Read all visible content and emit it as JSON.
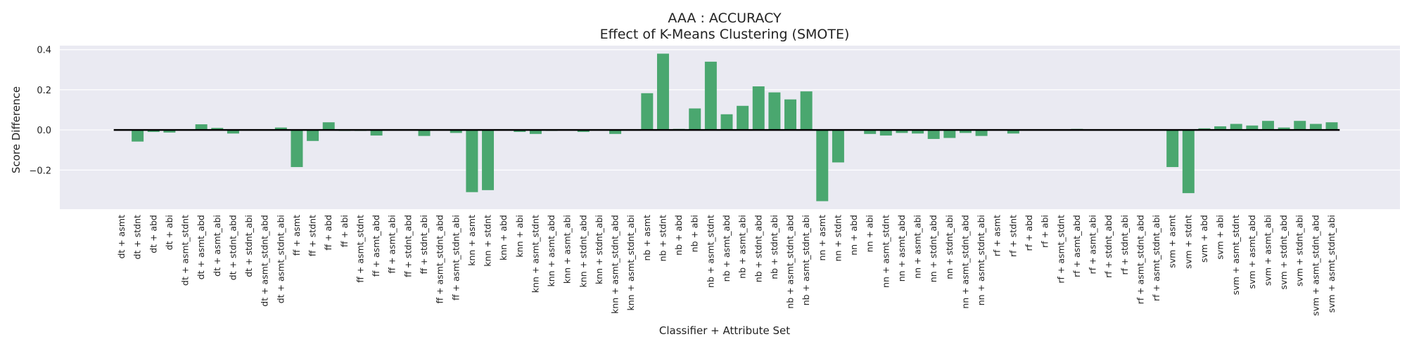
{
  "chart_data": {
    "type": "bar",
    "title": "AAA : ACCURACY",
    "subtitle": "Effect of K-Means Clustering (SMOTE)",
    "xlabel": "Classifier + Attribute Set",
    "ylabel": "Score Difference",
    "ylim": [
      -0.395,
      0.42
    ],
    "yticks": [
      -0.2,
      0.0,
      0.2,
      0.4
    ],
    "ytick_labels": [
      "−0.2",
      "0.0",
      "0.2",
      "0.4"
    ],
    "grid": true,
    "legend": "none",
    "colors": {
      "bar": "#4aa76f",
      "plot_bg": "#eaeaf2",
      "grid": "#ffffff",
      "zero_line": "#000000"
    },
    "categories": [
      "dt + asmt",
      "dt + stdnt",
      "dt + abd",
      "dt + abi",
      "dt + asmt_stdnt",
      "dt + asmt_abd",
      "dt + asmt_abi",
      "dt + stdnt_abd",
      "dt + stdnt_abi",
      "dt + asmt_stdnt_abd",
      "dt + asmt_stdnt_abi",
      "ff + asmt",
      "ff + stdnt",
      "ff + abd",
      "ff + abi",
      "ff + asmt_stdnt",
      "ff + asmt_abd",
      "ff + asmt_abi",
      "ff + stdnt_abd",
      "ff + stdnt_abi",
      "ff + asmt_stdnt_abd",
      "ff + asmt_stdnt_abi",
      "knn + asmt",
      "knn + stdnt",
      "knn + abd",
      "knn + abi",
      "knn + asmt_stdnt",
      "knn + asmt_abd",
      "knn + asmt_abi",
      "knn + stdnt_abd",
      "knn + stdnt_abi",
      "knn + asmt_stdnt_abd",
      "knn + asmt_stdnt_abi",
      "nb + asmt",
      "nb + stdnt",
      "nb + abd",
      "nb + abi",
      "nb + asmt_stdnt",
      "nb + asmt_abd",
      "nb + asmt_abi",
      "nb + stdnt_abd",
      "nb + stdnt_abi",
      "nb + asmt_stdnt_abd",
      "nb + asmt_stdnt_abi",
      "nn + asmt",
      "nn + stdnt",
      "nn + abd",
      "nn + abi",
      "nn + asmt_stdnt",
      "nn + asmt_abd",
      "nn + asmt_abi",
      "nn + stdnt_abd",
      "nn + stdnt_abi",
      "nn + asmt_stdnt_abd",
      "nn + asmt_stdnt_abi",
      "rf + asmt",
      "rf + stdnt",
      "rf + abd",
      "rf + abi",
      "rf + asmt_stdnt",
      "rf + asmt_abd",
      "rf + asmt_abi",
      "rf + stdnt_abd",
      "rf + stdnt_abi",
      "rf + asmt_stdnt_abd",
      "rf + asmt_stdnt_abi",
      "svm + asmt",
      "svm + stdnt",
      "svm + abd",
      "svm + abi",
      "svm + asmt_stdnt",
      "svm + asmt_abd",
      "svm + asmt_abi",
      "svm + stdnt_abd",
      "svm + stdnt_abi",
      "svm + asmt_stdnt_abd",
      "svm + asmt_stdnt_abi"
    ],
    "values": [
      0.0,
      -0.058,
      -0.01,
      -0.013,
      0.003,
      0.028,
      0.01,
      -0.018,
      0.003,
      0.002,
      0.012,
      -0.185,
      -0.055,
      0.038,
      -0.005,
      -0.005,
      -0.028,
      0.0,
      0.0,
      -0.03,
      0.0,
      -0.015,
      -0.31,
      -0.3,
      -0.003,
      -0.01,
      -0.02,
      -0.005,
      -0.003,
      -0.01,
      0.0,
      -0.02,
      0.002,
      0.183,
      0.38,
      0.005,
      0.107,
      0.34,
      0.078,
      0.12,
      0.217,
      0.187,
      0.152,
      0.192,
      -0.355,
      -0.162,
      -0.003,
      -0.02,
      -0.028,
      -0.015,
      -0.018,
      -0.045,
      -0.04,
      -0.015,
      -0.03,
      0.0,
      -0.018,
      0.0,
      0.0,
      0.0,
      0.005,
      0.0,
      0.0,
      0.0,
      0.0,
      0.0,
      -0.185,
      -0.315,
      0.008,
      0.018,
      0.03,
      0.022,
      0.045,
      0.012,
      0.045,
      0.03,
      0.038
    ]
  }
}
